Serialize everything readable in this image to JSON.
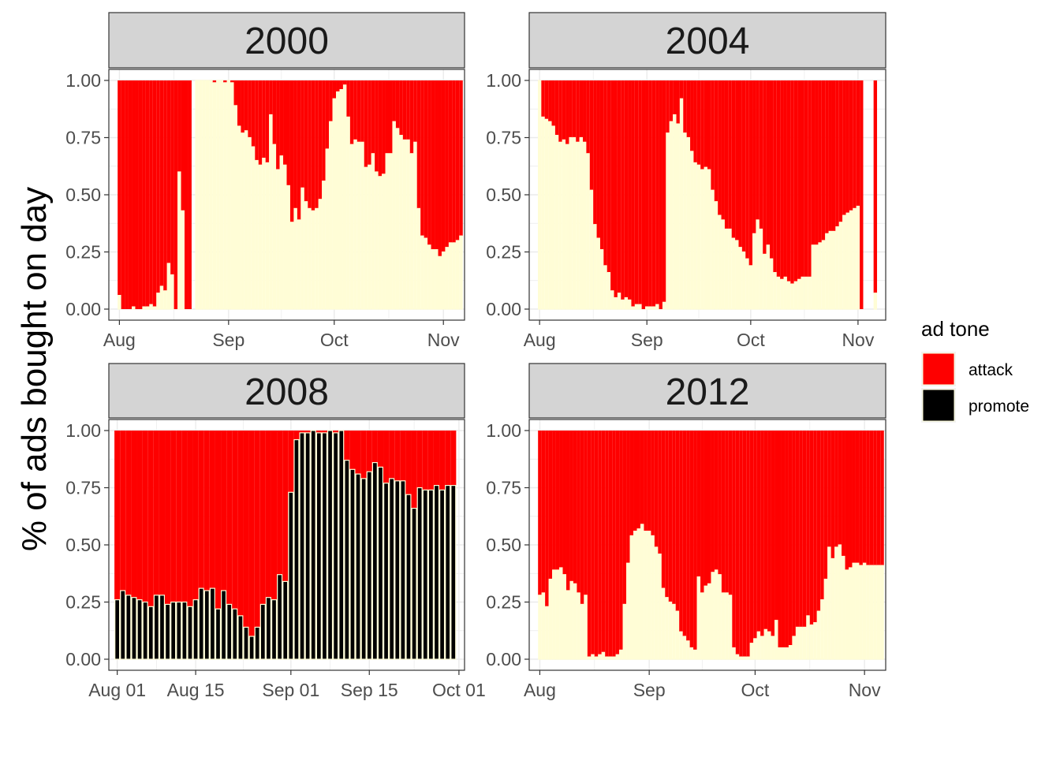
{
  "chart_data": {
    "type": "bar",
    "ylabel": "% of ads bought on day",
    "legend": {
      "title": "ad tone",
      "position": "right",
      "items": [
        {
          "name": "attack",
          "color": "#fe0000"
        },
        {
          "name": "promote",
          "color": "#000000"
        }
      ]
    },
    "colors": {
      "attack": "#fe0000",
      "promote_fill_light": "#fffdd6",
      "promote_fill_dark": "#000000",
      "bar_outline": "#fffdd6",
      "strip_bg": "#d4d4d4",
      "grid": "#ebebeb"
    },
    "y_ticks": [
      "0.00",
      "0.25",
      "0.50",
      "0.75",
      "1.00"
    ],
    "ylim": [
      0,
      1
    ],
    "panels": [
      {
        "title": "2000",
        "x_labels": [
          "Aug",
          "Sep",
          "Oct",
          "Nov"
        ],
        "x_label_days": [
          0,
          31,
          61,
          92
        ],
        "x_range": [
          -3,
          98
        ],
        "promote_style": "light",
        "start_day": 0,
        "promote_share": [
          0.06,
          0,
          0,
          0,
          0.01,
          0,
          0,
          0.01,
          0.01,
          0.02,
          0.01,
          0.07,
          0.1,
          0.08,
          0.2,
          0.15,
          0,
          0.6,
          0.43,
          0,
          0,
          null,
          1,
          1,
          1,
          1,
          1,
          0.99,
          1,
          1,
          0.99,
          1,
          0.99,
          0.89,
          0.8,
          0.77,
          0.78,
          0.75,
          0.71,
          0.65,
          0.63,
          0.66,
          0.64,
          0.85,
          0.72,
          0.61,
          0.67,
          0.63,
          0.54,
          0.38,
          0.44,
          0.39,
          0.53,
          0.47,
          0.44,
          0.43,
          0.44,
          0.48,
          0.56,
          0.7,
          0.82,
          0.92,
          0.95,
          0.96,
          0.98,
          0.84,
          0.72,
          0.74,
          0.73,
          0.73,
          0.62,
          0.63,
          0.68,
          0.6,
          0.58,
          0.59,
          0.68,
          0.68,
          0.82,
          0.79,
          0.76,
          0.74,
          0.74,
          0.68,
          0.73,
          0.44,
          0.32,
          0.31,
          0.28,
          0.26,
          0.26,
          0.23,
          0.25,
          0.27,
          0.29,
          0.29,
          0.3,
          0.32
        ]
      },
      {
        "title": "2004",
        "x_labels": [
          "Aug",
          "Sep",
          "Oct",
          "Nov"
        ],
        "x_label_days": [
          0,
          31,
          61,
          92
        ],
        "x_range": [
          -3,
          100
        ],
        "promote_style": "light",
        "start_day": 0,
        "promote_share": [
          1,
          0.84,
          0.83,
          0.82,
          0.8,
          0.76,
          0.73,
          0.74,
          0.72,
          0.75,
          0.75,
          0.73,
          0.75,
          0.73,
          0.68,
          0.52,
          0.37,
          0.31,
          0.26,
          0.19,
          0.16,
          0.08,
          0.05,
          0.07,
          0.04,
          0.05,
          0.04,
          0.01,
          0.02,
          0.02,
          0,
          0.01,
          0.01,
          0.01,
          0.02,
          0,
          0.03,
          0.77,
          0.82,
          0.85,
          0.81,
          0.92,
          0.77,
          0.75,
          0.69,
          0.64,
          0.63,
          0.61,
          0.62,
          0.61,
          0.52,
          0.47,
          0.41,
          0.39,
          0.35,
          0.35,
          0.31,
          0.3,
          0.27,
          0.25,
          0.22,
          0.19,
          0.33,
          0.39,
          0.35,
          0.24,
          0.28,
          0.22,
          0.16,
          0.14,
          0.13,
          0.14,
          0.12,
          0.11,
          0.12,
          0.13,
          0.14,
          0.14,
          0.14,
          0.28,
          0.28,
          0.29,
          0.3,
          0.33,
          0.34,
          0.34,
          0.36,
          0.38,
          0.41,
          0.42,
          0.43,
          0.44,
          0.45,
          0,
          null,
          null,
          null,
          0.07
        ]
      },
      {
        "title": "2008",
        "x_labels": [
          "Aug 01",
          "Aug 15",
          "Sep 01",
          "Sep 15",
          "Oct 01"
        ],
        "x_label_days": [
          0,
          14,
          31,
          45,
          61
        ],
        "x_range": [
          -1.5,
          62
        ],
        "promote_style": "dark",
        "start_day": 0,
        "promote_share": [
          0.26,
          0.3,
          0.28,
          0.27,
          0.26,
          0.25,
          0.23,
          0.28,
          0.28,
          0.24,
          0.25,
          0.25,
          0.25,
          0.23,
          0.26,
          0.31,
          0.3,
          0.31,
          0.22,
          0.3,
          0.24,
          0.22,
          0.19,
          0.14,
          0.1,
          0.14,
          0.24,
          0.27,
          0.26,
          0.37,
          0.34,
          0.73,
          0.96,
          0.99,
          0.99,
          1,
          0.99,
          0.99,
          1,
          0.99,
          1,
          0.87,
          0.83,
          0.81,
          0.79,
          0.82,
          0.86,
          0.84,
          0.77,
          0.79,
          0.78,
          0.78,
          0.72,
          0.66,
          0.75,
          0.74,
          0.74,
          0.76,
          0.74,
          0.76,
          0.76
        ]
      },
      {
        "title": "2012",
        "x_labels": [
          "Aug",
          "Sep",
          "Oct",
          "Nov"
        ],
        "x_label_days": [
          0,
          31,
          61,
          92
        ],
        "x_range": [
          -3,
          98
        ],
        "promote_style": "light",
        "start_day": 0,
        "promote_share": [
          0.28,
          0.29,
          0.23,
          0.35,
          0.39,
          0.39,
          0.4,
          0.37,
          0.3,
          0.34,
          0.33,
          0.29,
          0.24,
          0.28,
          0.01,
          0.02,
          0.01,
          0.02,
          0.03,
          0.01,
          0.01,
          0.01,
          0.02,
          0.04,
          0.24,
          0.42,
          0.54,
          0.56,
          0.57,
          0.59,
          0.56,
          0.56,
          0.54,
          0.49,
          0.46,
          0.31,
          0.27,
          0.25,
          0.24,
          0.21,
          0.12,
          0.1,
          0.08,
          0.05,
          0.04,
          0.36,
          0.29,
          0.32,
          0.33,
          0.38,
          0.39,
          0.37,
          0.29,
          0.29,
          0.28,
          0.05,
          0.02,
          0.01,
          0.01,
          0.01,
          0.07,
          0.09,
          0.12,
          0.1,
          0.13,
          0.12,
          0.1,
          0.17,
          0.05,
          0.05,
          0.05,
          0.06,
          0.1,
          0.14,
          0.14,
          0.14,
          0.19,
          0.15,
          0.16,
          0.21,
          0.26,
          0.35,
          0.49,
          0.44,
          0.49,
          0.5,
          0.45,
          0.39,
          0.4,
          0.42,
          0.42,
          0.41,
          0.42,
          0.41,
          0.41,
          0.41,
          0.41,
          0.41
        ]
      }
    ]
  }
}
